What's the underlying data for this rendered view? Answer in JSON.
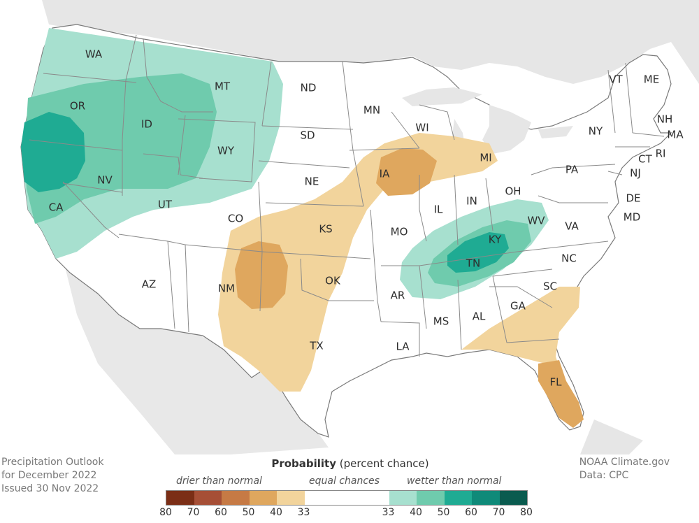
{
  "caption": {
    "line1": "Precipitation Outlook",
    "line2": "for December 2022",
    "line3": "Issued 30 Nov 2022"
  },
  "credit": {
    "line1": "NOAA Climate.gov",
    "line2": "Data: CPC"
  },
  "legend": {
    "title_bold": "Probability",
    "title_rest": " (percent chance)",
    "drier_label": "drier than normal",
    "equal_label": "equal chances",
    "wetter_label": "wetter than normal",
    "ticks": [
      "80",
      "70",
      "60",
      "50",
      "40",
      "33",
      "33",
      "40",
      "50",
      "60",
      "70",
      "80"
    ],
    "drier_colors": [
      "#7b2e16",
      "#a64f36",
      "#c67a45",
      "#dfa75e",
      "#f2d49c"
    ],
    "wetter_colors": [
      "#a7e0cf",
      "#6fcbad",
      "#1fab93",
      "#0f8a79",
      "#0a5b4f"
    ]
  },
  "map_colors": {
    "land": "#ffffff",
    "state_border": "#8a8a8a",
    "ocean": "#ffffff",
    "outside_land": "#e6e6e6"
  },
  "state_labels": [
    "WA",
    "OR",
    "CA",
    "ID",
    "NV",
    "MT",
    "WY",
    "UT",
    "AZ",
    "CO",
    "NM",
    "ND",
    "SD",
    "NE",
    "KS",
    "OK",
    "TX",
    "MN",
    "IA",
    "MO",
    "AR",
    "LA",
    "WI",
    "IL",
    "MI",
    "IN",
    "OH",
    "KY",
    "TN",
    "MS",
    "AL",
    "GA",
    "FL",
    "SC",
    "NC",
    "VA",
    "WV",
    "PA",
    "NY",
    "VT",
    "ME",
    "NH",
    "MA",
    "RI",
    "CT",
    "NJ",
    "DE",
    "MD"
  ]
}
